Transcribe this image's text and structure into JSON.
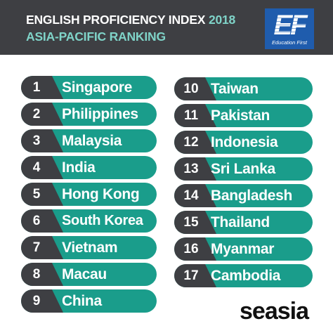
{
  "header": {
    "title_line1_main": "ENGLISH PROFICIENCY INDEX",
    "title_line1_year": "2018",
    "title_line2": "ASIA-PACIFIC RANKING"
  },
  "logo": {
    "mark": "EF",
    "subtitle": "Education First"
  },
  "rankings_left": [
    {
      "rank": "1",
      "country": "Singapore"
    },
    {
      "rank": "2",
      "country": "Philippines"
    },
    {
      "rank": "3",
      "country": "Malaysia"
    },
    {
      "rank": "4",
      "country": "India"
    },
    {
      "rank": "5",
      "country": "Hong Kong"
    },
    {
      "rank": "6",
      "country": "South Korea"
    },
    {
      "rank": "7",
      "country": "Vietnam"
    },
    {
      "rank": "8",
      "country": "Macau"
    },
    {
      "rank": "9",
      "country": "China"
    }
  ],
  "rankings_right": [
    {
      "rank": "10",
      "country": "Taiwan"
    },
    {
      "rank": "11",
      "country": "Pakistan"
    },
    {
      "rank": "12",
      "country": "Indonesia"
    },
    {
      "rank": "13",
      "country": "Sri Lanka"
    },
    {
      "rank": "14",
      "country": "Bangladesh"
    },
    {
      "rank": "15",
      "country": "Thailand"
    },
    {
      "rank": "16",
      "country": "Myanmar"
    },
    {
      "rank": "17",
      "country": "Cambodia"
    }
  ],
  "brand": "seasia",
  "colors": {
    "header_bg": "#3e3f43",
    "accent_text": "#7fd3c8",
    "row_teal": "#1a9d8b",
    "number_box": "#3e3f43",
    "logo_blue": "#1f5cad"
  }
}
